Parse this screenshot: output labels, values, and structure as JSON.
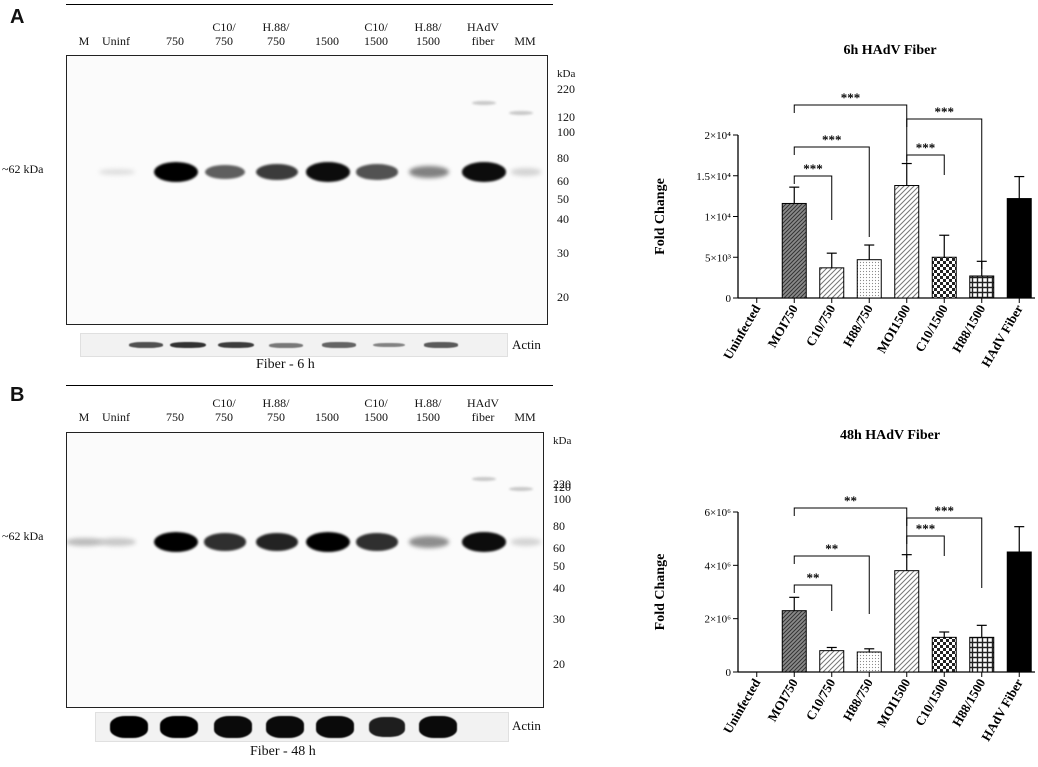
{
  "panels": [
    {
      "letter": "A",
      "lanes": [
        {
          "line1": "M",
          "line2": ""
        },
        {
          "line1": "Uninf",
          "line2": ""
        },
        {
          "line1": "750",
          "line2": ""
        },
        {
          "line1": "C10/",
          "line2": "750"
        },
        {
          "line1": "H.88/",
          "line2": "750"
        },
        {
          "line1": "1500",
          "line2": ""
        },
        {
          "line1": "C10/",
          "line2": "1500"
        },
        {
          "line1": "H.88/",
          "line2": "1500"
        },
        {
          "line1": "HAdV",
          "line2": "fiber"
        },
        {
          "line1": "MM",
          "line2": ""
        }
      ],
      "size_label": "~62 kDa",
      "marker_unit": "kDa",
      "markers": [
        "220",
        "120",
        "100",
        "80",
        "60",
        "50",
        "40",
        "30",
        "20"
      ],
      "actin_label": "Actin",
      "caption": "Fiber - 6 h",
      "band_intensity": [
        0.0,
        0.05,
        1.0,
        0.6,
        0.75,
        0.95,
        0.65,
        0.45,
        0.95,
        0.1
      ],
      "actin_intensity": [
        0.0,
        0.6,
        0.75,
        0.7,
        0.4,
        0.5,
        0.35,
        0.55
      ]
    },
    {
      "letter": "B",
      "lanes": [
        {
          "line1": "M",
          "line2": ""
        },
        {
          "line1": "Uninf",
          "line2": ""
        },
        {
          "line1": "750",
          "line2": ""
        },
        {
          "line1": "C10/",
          "line2": "750"
        },
        {
          "line1": "H.88/",
          "line2": "750"
        },
        {
          "line1": "1500",
          "line2": ""
        },
        {
          "line1": "C10/",
          "line2": "1500"
        },
        {
          "line1": "H.88/",
          "line2": "1500"
        },
        {
          "line1": "HAdV",
          "line2": "fiber"
        },
        {
          "line1": "MM",
          "line2": ""
        }
      ],
      "size_label": "~62 kDa",
      "marker_unit": "kDa",
      "markers": [
        "220",
        "120",
        "100",
        "80",
        "60",
        "50",
        "40",
        "30",
        "20"
      ],
      "actin_label": "Actin",
      "caption": "Fiber - 48 h",
      "band_intensity": [
        0.2,
        0.15,
        1.0,
        0.8,
        0.85,
        1.0,
        0.8,
        0.4,
        0.95,
        0.1
      ],
      "actin_intensity": [
        1.0,
        1.0,
        0.95,
        0.95,
        0.95,
        0.85,
        0.95
      ]
    }
  ],
  "chart_data": [
    {
      "type": "bar",
      "title": "6h HAdV Fiber",
      "ylabel": "Fold Change",
      "xlabel": "",
      "categories": [
        "Uninfected",
        "MOI750",
        "C10/750",
        "H88/750",
        "MOI1500",
        "C10/1500",
        "H88/1500",
        "HAdV Fiber"
      ],
      "values": [
        0,
        11600,
        3700,
        4700,
        13800,
        5000,
        2700,
        12200
      ],
      "errors": [
        0,
        2000,
        1800,
        1800,
        2700,
        2700,
        1800,
        2700
      ],
      "ylim": [
        0,
        20000
      ],
      "yticks": [
        0,
        5000,
        10000,
        15000,
        20000
      ],
      "ytick_labels": [
        "0",
        "5×10³",
        "1×10⁴",
        "1.5×10⁴",
        "2×10⁴"
      ],
      "fills": [
        "none",
        "#777777",
        "#dddddd",
        "#eeeeee",
        "#dddddd",
        "#444444",
        "#555555",
        "#000000"
      ],
      "patterns": [
        "none",
        "hatch-dense",
        "hatch",
        "dots",
        "hatch",
        "checker",
        "grid",
        "solid"
      ],
      "significance": [
        {
          "from": "MOI750",
          "to": "C10/750",
          "label": "***"
        },
        {
          "from": "MOI750",
          "to": "H88/750",
          "label": "***"
        },
        {
          "from": "MOI750",
          "to": "MOI1500",
          "label": "***"
        },
        {
          "from": "MOI1500",
          "to": "C10/1500",
          "label": "***"
        },
        {
          "from": "MOI1500",
          "to": "H88/1500",
          "label": "***"
        }
      ]
    },
    {
      "type": "bar",
      "title": "48h HAdV Fiber",
      "ylabel": "Fold Change",
      "xlabel": "",
      "categories": [
        "Uninfected",
        "MOI750",
        "C10/750",
        "H88/750",
        "MOI1500",
        "C10/1500",
        "H88/1500",
        "HAdV Fiber"
      ],
      "values": [
        0,
        2300000,
        800000,
        750000,
        3800000,
        1300000,
        1300000,
        4500000
      ],
      "errors": [
        0,
        500000,
        120000,
        120000,
        600000,
        200000,
        450000,
        950000
      ],
      "ylim": [
        0,
        6000000
      ],
      "yticks": [
        0,
        2000000,
        4000000,
        6000000
      ],
      "ytick_labels": [
        "0",
        "2×10⁶",
        "4×10⁶",
        "6×10⁶"
      ],
      "fills": [
        "none",
        "#777777",
        "#dddddd",
        "#eeeeee",
        "#dddddd",
        "#444444",
        "#555555",
        "#000000"
      ],
      "patterns": [
        "none",
        "hatch-dense",
        "hatch",
        "dots",
        "hatch",
        "checker",
        "grid",
        "solid"
      ],
      "significance": [
        {
          "from": "MOI750",
          "to": "C10/750",
          "label": "**"
        },
        {
          "from": "MOI750",
          "to": "H88/750",
          "label": "**"
        },
        {
          "from": "MOI750",
          "to": "MOI1500",
          "label": "**"
        },
        {
          "from": "MOI1500",
          "to": "C10/1500",
          "label": "***"
        },
        {
          "from": "MOI1500",
          "to": "H88/1500",
          "label": "***"
        }
      ]
    }
  ]
}
